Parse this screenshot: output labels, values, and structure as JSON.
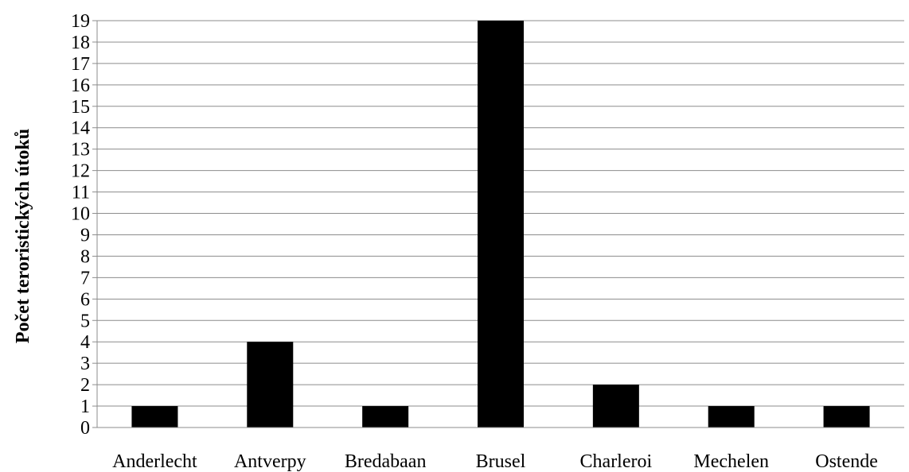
{
  "chart_data": {
    "type": "bar",
    "title": "",
    "xlabel": "",
    "ylabel": "Počet teroristických útoků",
    "categories": [
      "Anderlecht",
      "Antverpy",
      "Bredabaan",
      "Brusel",
      "Charleroi",
      "Mechelen",
      "Ostende"
    ],
    "values": [
      1,
      4,
      1,
      19,
      2,
      1,
      1
    ],
    "ylim": [
      0,
      19
    ],
    "yticks": [
      "0",
      "1",
      "2",
      "3",
      "4",
      "5",
      "6",
      "7",
      "8",
      "9",
      "10",
      "11",
      "12",
      "13",
      "14",
      "15",
      "16",
      "17",
      "18",
      "19"
    ],
    "grid": true,
    "legend": "none",
    "bar_color": "#000000",
    "grid_color": "#8c8c8c"
  }
}
